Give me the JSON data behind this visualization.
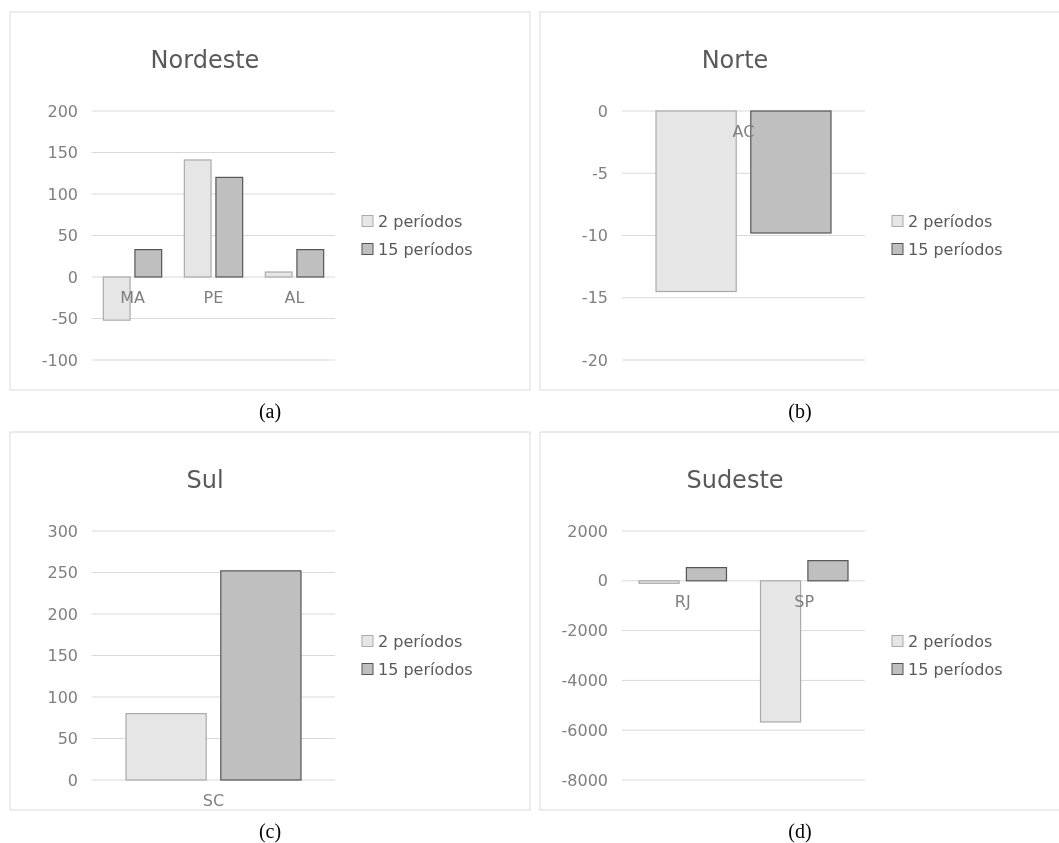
{
  "chart_data": [
    {
      "type": "bar",
      "title": "Nordeste",
      "categories": [
        "MA",
        "PE",
        "AL"
      ],
      "series": [
        {
          "name": "2 períodos",
          "color": "#e6e6e6",
          "values": [
            -52,
            141,
            6
          ]
        },
        {
          "name": "15 períodos",
          "color": "#bfbfbf",
          "values": [
            33,
            120,
            33
          ]
        }
      ],
      "ylim": [
        -100,
        200
      ],
      "yticks": [
        -100,
        -50,
        0,
        50,
        100,
        150,
        200
      ],
      "grid": "y",
      "legend": "right",
      "annotations": [
        "(a)"
      ]
    },
    {
      "type": "bar",
      "title": "Norte",
      "categories": [
        "AC"
      ],
      "series": [
        {
          "name": "2 períodos",
          "color": "#e6e6e6",
          "values": [
            -14.5
          ]
        },
        {
          "name": "15 períodos",
          "color": "#bfbfbf",
          "values": [
            -9.8
          ]
        }
      ],
      "ylim": [
        -20,
        0
      ],
      "yticks": [
        -20,
        -15,
        -10,
        -5,
        0
      ],
      "grid": "y",
      "legend": "right",
      "annotations": [
        "(b)"
      ]
    },
    {
      "type": "bar",
      "title": "Sul",
      "categories": [
        "SC"
      ],
      "series": [
        {
          "name": "2 períodos",
          "color": "#e6e6e6",
          "values": [
            80
          ]
        },
        {
          "name": "15 períodos",
          "color": "#bfbfbf",
          "values": [
            252
          ]
        }
      ],
      "ylim": [
        0,
        300
      ],
      "yticks": [
        0,
        50,
        100,
        150,
        200,
        250,
        300
      ],
      "grid": "y",
      "legend": "right",
      "annotations": [
        "(c)"
      ]
    },
    {
      "type": "bar",
      "title": "Sudeste",
      "categories": [
        "RJ",
        "SP"
      ],
      "series": [
        {
          "name": "2 períodos",
          "color": "#e6e6e6",
          "values": [
            -100,
            -5670
          ]
        },
        {
          "name": "15 períodos",
          "color": "#bfbfbf",
          "values": [
            530,
            810
          ]
        }
      ],
      "ylim": [
        -8000,
        2000
      ],
      "yticks": [
        -8000,
        -6000,
        -4000,
        -2000,
        0,
        2000
      ],
      "grid": "y",
      "legend": "right",
      "annotations": [
        "(d)"
      ]
    }
  ]
}
